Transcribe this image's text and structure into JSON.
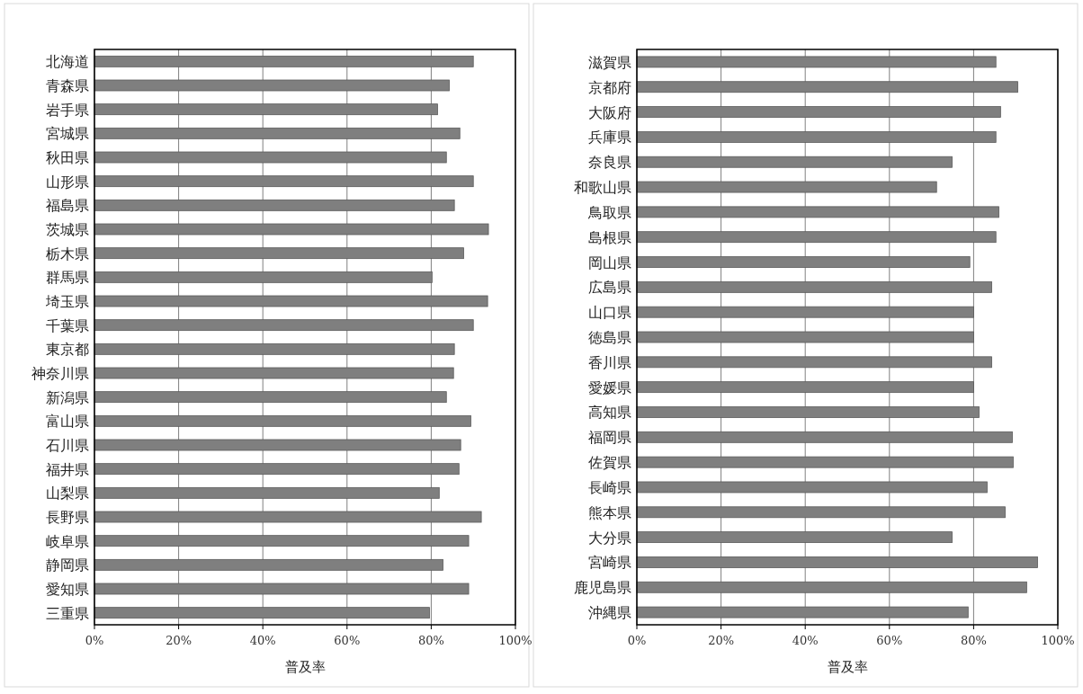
{
  "chart_data": [
    {
      "type": "bar",
      "orientation": "horizontal",
      "xlabel": "普及率",
      "color": "#7f7f7f",
      "grid": "x",
      "categories": [
        "北海道",
        "青森県",
        "岩手県",
        "宮城県",
        "秋田県",
        "山形県",
        "福島県",
        "茨城県",
        "栃木県",
        "群馬県",
        "埼玉県",
        "千葉県",
        "東京都",
        "神奈川県",
        "新潟県",
        "富山県",
        "石川県",
        "福井県",
        "山梨県",
        "長野県",
        "岐阜県",
        "静岡県",
        "愛知県",
        "三重県"
      ],
      "values": [
        90.0,
        84.3,
        81.5,
        86.8,
        83.6,
        90.0,
        85.5,
        93.6,
        87.7,
        80.2,
        93.4,
        90.0,
        85.5,
        85.3,
        83.6,
        89.4,
        87.0,
        86.6,
        81.9,
        91.9,
        88.9,
        82.8,
        88.9,
        79.6
      ],
      "xlim": [
        0,
        100
      ],
      "xticks": [
        {
          "value": 0,
          "label": "0%"
        },
        {
          "value": 20,
          "label": "20%"
        },
        {
          "value": 40,
          "label": "40%"
        },
        {
          "value": 60,
          "label": "60%"
        },
        {
          "value": 80,
          "label": "80%"
        },
        {
          "value": 100,
          "label": "100%"
        }
      ]
    },
    {
      "type": "bar",
      "orientation": "horizontal",
      "xlabel": "普及率",
      "color": "#7f7f7f",
      "grid": "x",
      "categories": [
        "滋賀県",
        "京都府",
        "大阪府",
        "兵庫県",
        "奈良県",
        "和歌山県",
        "鳥取県",
        "島根県",
        "岡山県",
        "広島県",
        "山口県",
        "徳島県",
        "香川県",
        "愛媛県",
        "高知県",
        "福岡県",
        "佐賀県",
        "長崎県",
        "熊本県",
        "大分県",
        "宮崎県",
        "鹿児島県",
        "沖縄県"
      ],
      "values": [
        85.3,
        90.5,
        86.4,
        85.3,
        74.9,
        71.2,
        86.0,
        85.3,
        79.1,
        84.3,
        80.0,
        80.0,
        84.3,
        80.0,
        81.3,
        89.2,
        89.4,
        83.2,
        87.5,
        74.9,
        95.2,
        92.6,
        78.7
      ],
      "xlim": [
        0,
        100
      ],
      "xticks": [
        {
          "value": 0,
          "label": "0%"
        },
        {
          "value": 20,
          "label": "20%"
        },
        {
          "value": 40,
          "label": "40%"
        },
        {
          "value": 60,
          "label": "60%"
        },
        {
          "value": 80,
          "label": "80%"
        },
        {
          "value": 100,
          "label": "100%"
        }
      ]
    }
  ]
}
